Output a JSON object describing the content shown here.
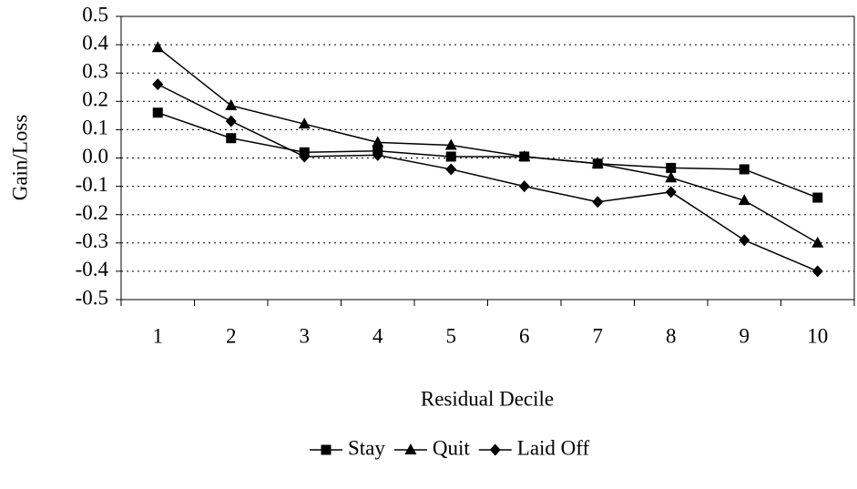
{
  "chart_data": {
    "type": "line",
    "y_label": "Gain/Loss",
    "x_label": "Residual Decile",
    "categories": [
      "1",
      "2",
      "3",
      "4",
      "5",
      "6",
      "7",
      "8",
      "9",
      "10"
    ],
    "series": [
      {
        "name": "Stay",
        "color": "#000000",
        "marker": "square",
        "values": [
          0.16,
          0.07,
          0.02,
          0.025,
          0.005,
          0.005,
          -0.02,
          -0.035,
          -0.04,
          -0.14
        ]
      },
      {
        "name": "Quit",
        "color": "#000000",
        "marker": "triangle",
        "values": [
          0.39,
          0.185,
          0.12,
          0.055,
          0.045,
          0.005,
          -0.02,
          -0.07,
          -0.15,
          -0.3
        ]
      },
      {
        "name": "Laid Off",
        "color": "#000000",
        "marker": "diamond",
        "values": [
          0.26,
          0.13,
          0.005,
          0.01,
          -0.04,
          -0.1,
          -0.155,
          -0.12,
          -0.29,
          -0.4
        ]
      }
    ],
    "ylim": [
      -0.5,
      0.5
    ],
    "yticks": [
      -0.5,
      -0.4,
      -0.3,
      -0.2,
      -0.1,
      {
        "value": 0,
        "label": "0.0"
      },
      0.1,
      0.2,
      0.3,
      0.4,
      0.5
    ],
    "grid": true,
    "legend": "bottom"
  }
}
